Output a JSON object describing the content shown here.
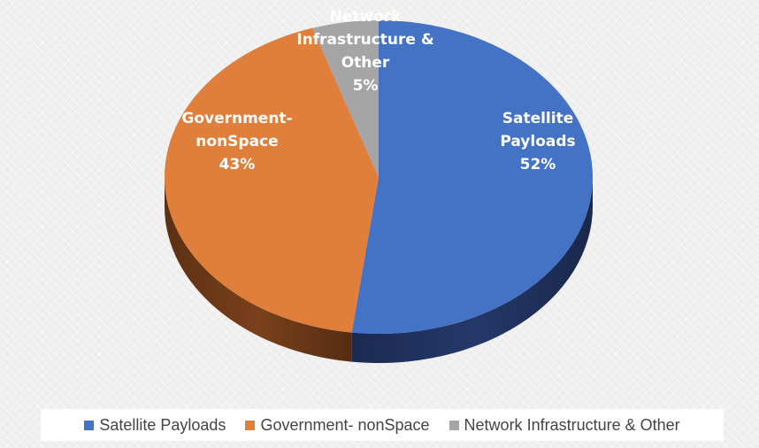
{
  "chart_data": {
    "type": "pie",
    "style": "3d",
    "slices": [
      {
        "name": "Satellite Payloads",
        "label_lines": [
          "Satellite",
          "Payloads"
        ],
        "value": 52,
        "value_label": "52%",
        "color": "#4472C4",
        "side_color": "#24386a"
      },
      {
        "name": "Government- nonSpace",
        "label_lines": [
          "Government-",
          "nonSpace"
        ],
        "value": 43,
        "value_label": "43%",
        "color": "#E07F3C",
        "side_color": "#7a401a"
      },
      {
        "name": "Network Infrastructure & Other",
        "label_lines": [
          "Network",
          "Infrastructure &",
          "Other"
        ],
        "value": 5,
        "value_label": "5%",
        "color": "#A5A5A5",
        "side_color": "#5e5e5e"
      }
    ],
    "legend": {
      "placement": "bottom",
      "items": [
        "Satellite Payloads",
        "Government- nonSpace",
        "Network Infrastructure & Other"
      ]
    }
  }
}
